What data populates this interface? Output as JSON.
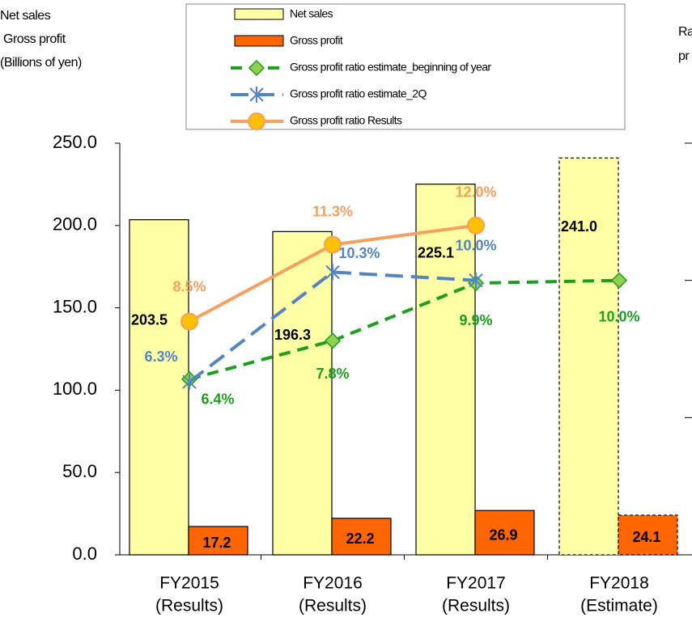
{
  "chart_data": {
    "type": "bar",
    "y_label": [
      "Net sales",
      "Gross profit",
      "(Billions of yen)"
    ],
    "y2_label": [
      "Ra",
      "pr"
    ],
    "categories": [
      [
        "FY2015",
        "(Results)"
      ],
      [
        "FY2016",
        "(Results)"
      ],
      [
        "FY2017",
        "(Results)"
      ],
      [
        "FY2018",
        "(Estimate)"
      ]
    ],
    "ylim": [
      0,
      250
    ],
    "yticks": [
      {
        "value": 0,
        "label": "0.0"
      },
      {
        "value": 50,
        "label": "50.0"
      },
      {
        "value": 100,
        "label": "100.0"
      },
      {
        "value": 150,
        "label": "150.0"
      },
      {
        "value": 200,
        "label": "200.0"
      },
      {
        "value": 250,
        "label": "250.0"
      }
    ],
    "y2lim": [
      0,
      15
    ],
    "y2ticks": [
      0,
      5,
      10,
      15
    ],
    "series": [
      {
        "name": "Net sales",
        "type": "bar",
        "color": "#ffffa6",
        "values": [
          203.5,
          196.3,
          225.1,
          241.0
        ],
        "value_labels": [
          "203.5",
          "196.3",
          "225.1",
          "241.0"
        ]
      },
      {
        "name": "Gross profit",
        "type": "bar",
        "color": "#ff6600",
        "values": [
          17.2,
          22.2,
          26.9,
          24.1
        ],
        "value_labels": [
          "17.2",
          "22.2",
          "26.9",
          "24.1"
        ]
      },
      {
        "name": "Gross profit ratio estimate_beginning of year",
        "type": "line",
        "axis": "y2",
        "color": "#1e9e1e",
        "marker": "diamond",
        "values": [
          6.4,
          7.8,
          9.9,
          10.0
        ],
        "value_labels": [
          "6.4%",
          "7.8%",
          "9.9%",
          "10.0%"
        ]
      },
      {
        "name": "Gross profit ratio estimate_2Q",
        "type": "line",
        "axis": "y2",
        "color": "#5585c0",
        "marker": "star",
        "values": [
          6.3,
          10.3,
          10.0,
          null
        ],
        "value_labels": [
          "6.3%",
          "10.3%",
          "10.0%",
          null
        ]
      },
      {
        "name": "Gross profit ratio Results",
        "type": "line",
        "axis": "y2",
        "color": "#f4a060",
        "marker": "circle",
        "values": [
          8.5,
          11.3,
          12.0,
          null
        ],
        "value_labels": [
          "8.5%",
          "11.3%",
          "12.0%",
          null
        ]
      }
    ]
  }
}
